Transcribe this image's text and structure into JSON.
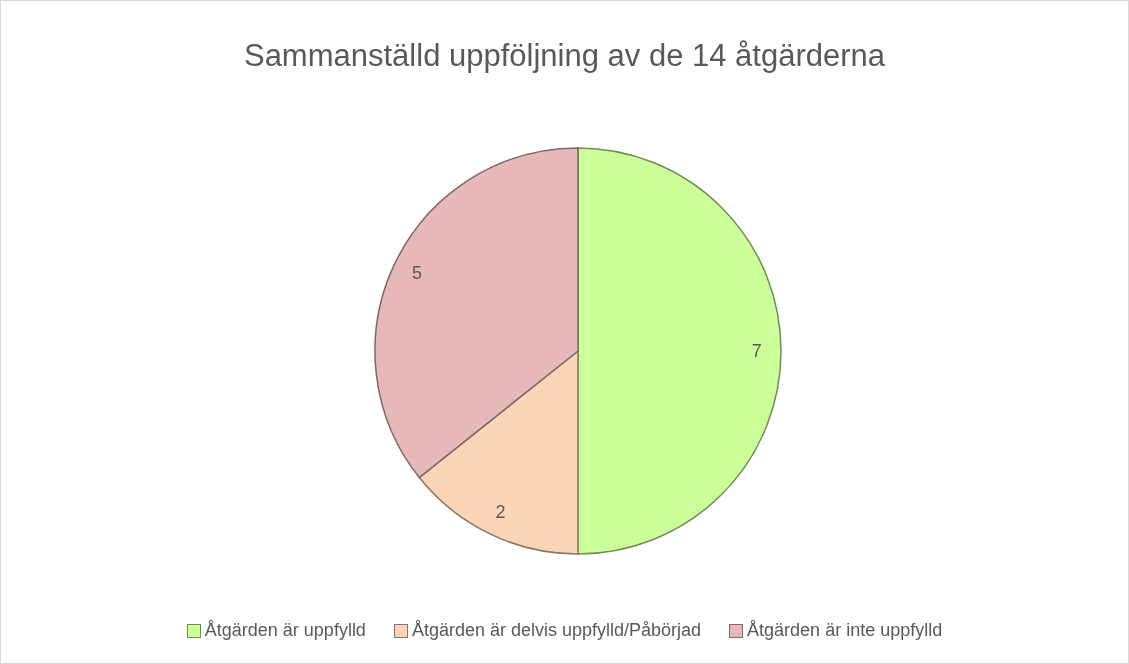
{
  "chart_data": {
    "type": "pie",
    "title": "Sammanställd uppföljning av de 14 åtgärderna",
    "categories": [
      "Åtgärden är uppfylld",
      "Åtgärden är delvis uppfylld/Påbörjad",
      "Åtgärden är inte uppfylld"
    ],
    "values": [
      7,
      2,
      5
    ],
    "colors": [
      "#ccff99",
      "#fbd5b5",
      "#e6b9b8"
    ],
    "data_labels": true,
    "legend": "bottom"
  }
}
